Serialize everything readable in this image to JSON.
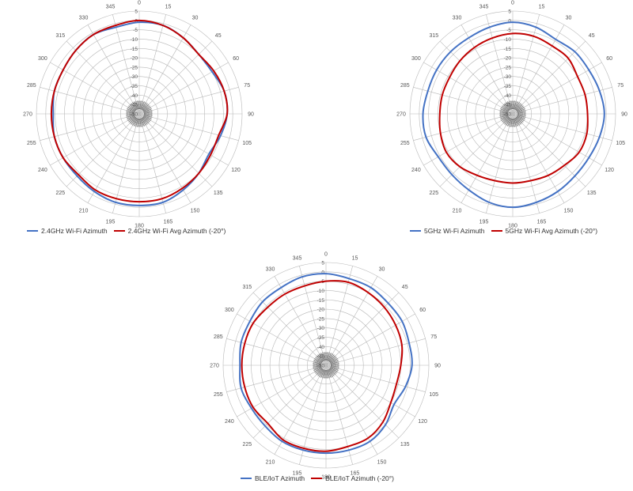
{
  "chart_data": [
    {
      "type": "polar-line",
      "title": "",
      "angle_ticks": [
        "0",
        "15",
        "30",
        "45",
        "60",
        "75",
        "90",
        "105",
        "120",
        "135",
        "150",
        "165",
        "180",
        "195",
        "210",
        "225",
        "240",
        "255",
        "270",
        "285",
        "300",
        "315",
        "330",
        "345"
      ],
      "radial_ticks": [
        "5",
        "0",
        "-5",
        "-10",
        "-15",
        "-20",
        "-25",
        "-30",
        "-35",
        "-40",
        "-45",
        "-50"
      ],
      "rlim": [
        -50,
        5
      ],
      "grid": true,
      "legend_position": "bottom",
      "series": [
        {
          "name": "2.4GHz Wi-Fi Azimuth",
          "color": "#4472c4",
          "angles": [
            0,
            15,
            30,
            45,
            60,
            75,
            90,
            105,
            120,
            135,
            150,
            165,
            180,
            195,
            210,
            225,
            240,
            255,
            270,
            285,
            300,
            315,
            330,
            345
          ],
          "values": [
            -1,
            -1,
            -3,
            -5,
            -5,
            -3,
            -3,
            -5,
            -7,
            -5,
            -3,
            -1,
            -1,
            -1,
            -2,
            -3,
            -3,
            -3,
            -4,
            -3,
            -3,
            -2,
            -1,
            -2
          ]
        },
        {
          "name": "2.4GHz Wi-Fi Avg Azimuth (-20°)",
          "color": "#c00000",
          "angles": [
            0,
            15,
            30,
            45,
            60,
            75,
            90,
            105,
            120,
            135,
            150,
            165,
            180,
            195,
            210,
            225,
            240,
            255,
            270,
            285,
            300,
            315,
            330,
            345
          ],
          "values": [
            0,
            -1,
            -3,
            -5,
            -4,
            -3,
            -3,
            -6,
            -6,
            -5,
            -4,
            -3,
            -3,
            -3,
            -3,
            -4,
            -3,
            -3,
            -3,
            -3,
            -3,
            -2,
            -1,
            -1
          ]
        }
      ]
    },
    {
      "type": "polar-line",
      "title": "",
      "angle_ticks": [
        "0",
        "15",
        "30",
        "45",
        "60",
        "75",
        "90",
        "105",
        "120",
        "135",
        "150",
        "165",
        "180",
        "195",
        "210",
        "225",
        "240",
        "255",
        "270",
        "285",
        "300",
        "315",
        "330",
        "345"
      ],
      "radial_ticks": [
        "5",
        "0",
        "-5",
        "-10",
        "-15",
        "-20",
        "-25",
        "-30",
        "-35",
        "-40",
        "-45",
        "-50"
      ],
      "rlim": [
        -50,
        5
      ],
      "grid": true,
      "legend_position": "bottom",
      "series": [
        {
          "name": "5GHz Wi-Fi Azimuth",
          "color": "#4472c4",
          "angles": [
            0,
            15,
            30,
            45,
            60,
            75,
            90,
            105,
            120,
            135,
            150,
            165,
            180,
            195,
            210,
            225,
            240,
            255,
            270,
            285,
            300,
            315,
            330,
            345
          ],
          "values": [
            -1,
            -2,
            -4,
            -3,
            -3,
            -2,
            -1,
            -2,
            -3,
            -3,
            -2,
            -1,
            0,
            -1,
            -3,
            -4,
            -4,
            -2,
            -2,
            -3,
            -3,
            -3,
            -3,
            -2
          ]
        },
        {
          "name": "5GHz Wi-Fi Avg Azimuth (-20°)",
          "color": "#c00000",
          "angles": [
            0,
            15,
            30,
            45,
            60,
            75,
            90,
            105,
            120,
            135,
            150,
            165,
            180,
            195,
            210,
            225,
            240,
            255,
            270,
            285,
            300,
            315,
            330,
            345
          ],
          "values": [
            -7,
            -7,
            -8,
            -8,
            -10,
            -10,
            -10,
            -9,
            -9,
            -11,
            -12,
            -13,
            -13,
            -13,
            -12,
            -10,
            -9,
            -10,
            -11,
            -11,
            -11,
            -10,
            -9,
            -8
          ]
        }
      ]
    },
    {
      "type": "polar-line",
      "title": "",
      "angle_ticks": [
        "0",
        "15",
        "30",
        "45",
        "60",
        "75",
        "90",
        "105",
        "120",
        "135",
        "150",
        "165",
        "180",
        "195",
        "210",
        "225",
        "240",
        "255",
        "270",
        "285",
        "300",
        "315",
        "330",
        "345"
      ],
      "radial_ticks": [
        "5",
        "0",
        "-5",
        "-10",
        "-15",
        "-20",
        "-25",
        "-30",
        "-35",
        "-40",
        "-45",
        "-50"
      ],
      "rlim": [
        -50,
        5
      ],
      "grid": true,
      "legend_position": "bottom",
      "series": [
        {
          "name": "BLE/IoT Azimuth",
          "color": "#4472c4",
          "angles": [
            0,
            15,
            30,
            45,
            60,
            75,
            90,
            105,
            120,
            135,
            150,
            165,
            180,
            195,
            210,
            225,
            240,
            255,
            270,
            285,
            300,
            315,
            330,
            345
          ],
          "values": [
            -1,
            -2,
            -2,
            -3,
            -3,
            -4,
            -4,
            -6,
            -8,
            -5,
            -3,
            -3,
            -3,
            -3,
            -3,
            -4,
            -4,
            -3,
            -4,
            -3,
            -3,
            -2,
            -2,
            -1
          ]
        },
        {
          "name": "BLE/IoT Azimuth (-20°)",
          "color": "#c00000",
          "angles": [
            0,
            15,
            30,
            45,
            60,
            75,
            90,
            105,
            120,
            135,
            150,
            165,
            180,
            195,
            210,
            225,
            240,
            255,
            270,
            285,
            300,
            315,
            330,
            345
          ],
          "values": [
            -5,
            -4,
            -5,
            -6,
            -7,
            -8,
            -10,
            -11,
            -10,
            -7,
            -5,
            -5,
            -4,
            -4,
            -4,
            -6,
            -5,
            -5,
            -5,
            -5,
            -5,
            -6,
            -6,
            -6
          ]
        }
      ]
    }
  ]
}
